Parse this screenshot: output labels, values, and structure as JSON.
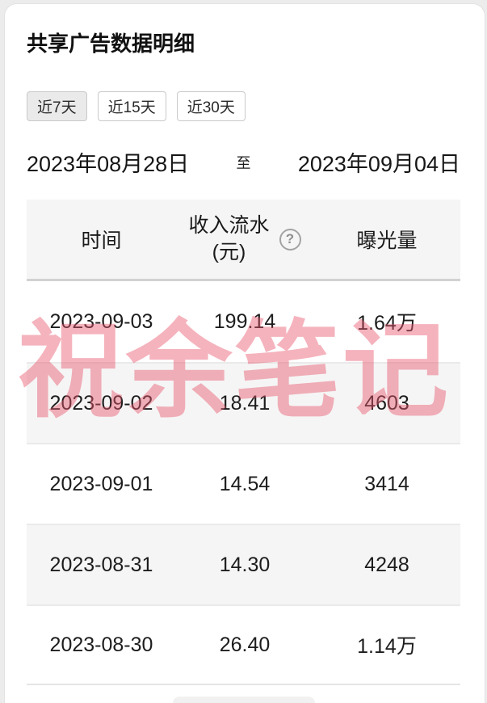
{
  "page": {
    "title": "共享广告数据明细"
  },
  "tabs": [
    {
      "label": "近7天",
      "selected": true
    },
    {
      "label": "近15天",
      "selected": false
    },
    {
      "label": "近30天",
      "selected": false
    }
  ],
  "date_range": {
    "start": "2023年08月28日",
    "separator": "至",
    "end": "2023年09月04日"
  },
  "table": {
    "headers": {
      "time": "时间",
      "revenue_line1": "收入流水",
      "revenue_line2": "(元)",
      "help_glyph": "?",
      "exposure": "曝光量"
    },
    "rows": [
      {
        "date": "2023-09-03",
        "revenue": "199.14",
        "exposure": "1.64万"
      },
      {
        "date": "2023-09-02",
        "revenue": "18.41",
        "exposure": "4603"
      },
      {
        "date": "2023-09-01",
        "revenue": "14.54",
        "exposure": "3414"
      },
      {
        "date": "2023-08-31",
        "revenue": "14.30",
        "exposure": "4248"
      },
      {
        "date": "2023-08-30",
        "revenue": "26.40",
        "exposure": "1.14万"
      }
    ]
  },
  "watermark": {
    "text": "祝余笔记",
    "color": "#e9566c",
    "opacity": 0.45
  },
  "colors": {
    "header_bg": "#f5f5f5",
    "stripe_bg": "#f5f5f5",
    "selected_tab_bg": "#eaeaea",
    "header_border": "#d2d2d2",
    "row_border": "#eaeaea",
    "text": "#1d1d1d"
  }
}
